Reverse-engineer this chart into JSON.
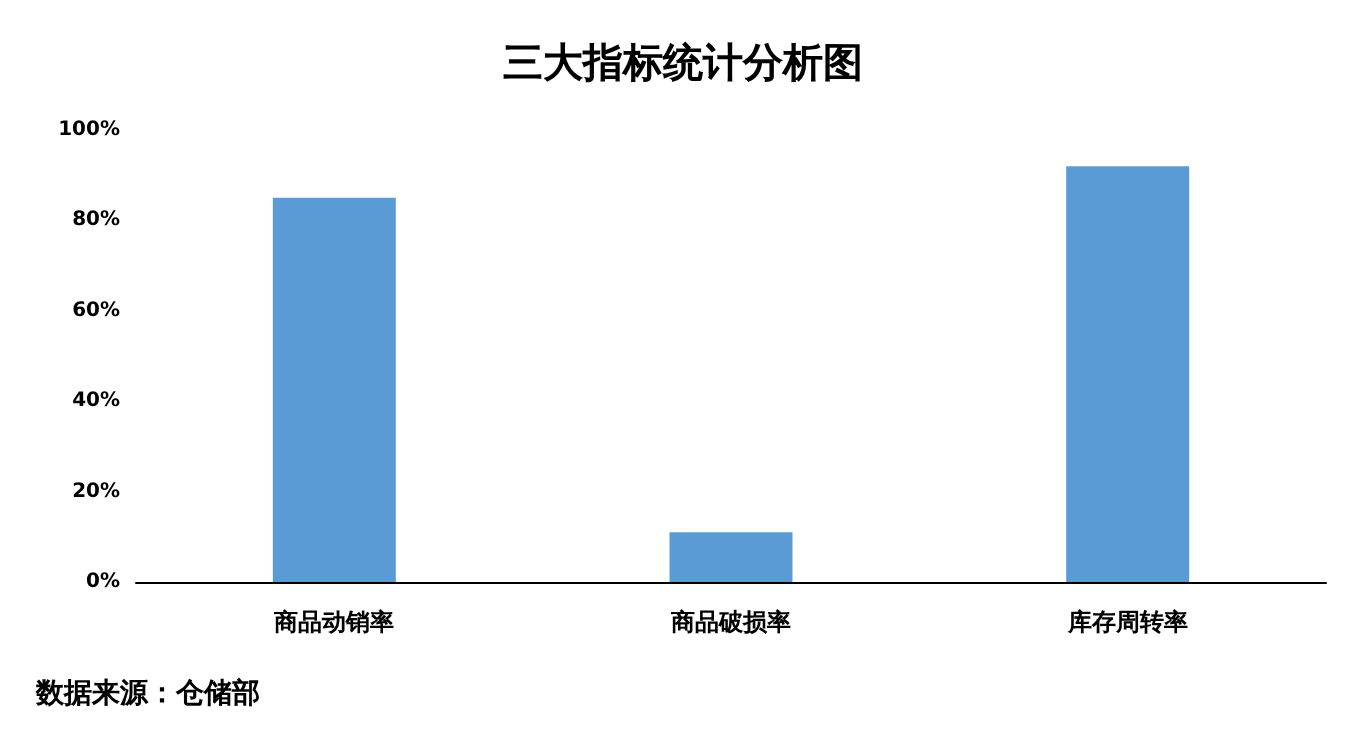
{
  "chart_data": {
    "type": "bar",
    "title": "三大指标统计分析图",
    "categories": [
      "商品动销率",
      "商品破损率",
      "库存周转率"
    ],
    "values": [
      85,
      11,
      92
    ],
    "color": "#5b9bd5",
    "ylim": [
      0,
      100
    ],
    "yticks": [
      {
        "value": 0,
        "label": "0%"
      },
      {
        "value": 20,
        "label": "20%"
      },
      {
        "value": 40,
        "label": "40%"
      },
      {
        "value": 60,
        "label": "60%"
      },
      {
        "value": 80,
        "label": "80%"
      },
      {
        "value": 100,
        "label": "100%"
      }
    ],
    "grid": false,
    "annotations": [
      "数据来源：仓储部"
    ]
  }
}
